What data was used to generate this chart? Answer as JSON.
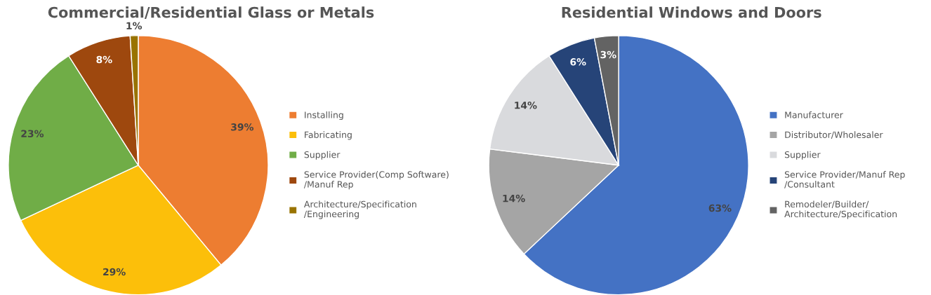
{
  "chart_data": [
    {
      "type": "pie",
      "title": "Commercial/Residential Glass or Metals",
      "categories": [
        "Installing",
        "Fabricating",
        "Supplier",
        "Service Provider(Comp Software)\n/Manuf Rep",
        "Architecture/Specification\n/Engineering"
      ],
      "values": [
        39,
        29,
        23,
        8,
        1
      ],
      "value_labels": [
        "39%",
        "29%",
        "23%",
        "8%",
        "1%"
      ],
      "colors": [
        "#ed7d31",
        "#fcbf0a",
        "#70ad47",
        "#9e480e",
        "#997300"
      ],
      "legend": "right"
    },
    {
      "type": "pie",
      "title": "Residential Windows and Doors",
      "categories": [
        "Manufacturer",
        "Distributor/Wholesaler",
        "Supplier",
        "Service Provider/Manuf Rep\n/Consultant",
        "Remodeler/Builder/\nArchitecture/Specification"
      ],
      "values": [
        63,
        14,
        14,
        6,
        3
      ],
      "value_labels": [
        "63%",
        "14%",
        "14%",
        "6%",
        "3%"
      ],
      "colors": [
        "#4472c4",
        "#a5a5a5",
        "#d9dadd",
        "#264478",
        "#636363"
      ],
      "legend": "right"
    }
  ]
}
